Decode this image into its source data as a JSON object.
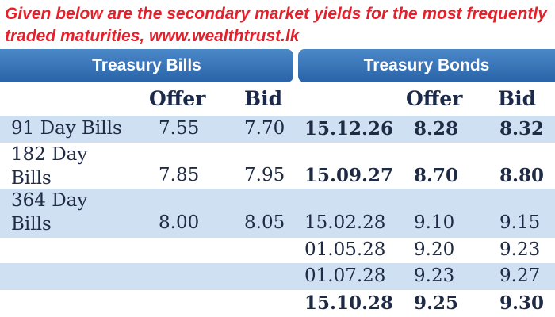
{
  "intro_line1": "Given below are the secondary market yields for the most frequently",
  "intro_line2": "traded maturities, www.wealthtrust.lk",
  "bills_header": "Treasury Bills",
  "bonds_header": "Treasury Bonds",
  "col_offer": "Offer",
  "col_bid": "Bid",
  "bills": [
    {
      "name": "91 Day Bills",
      "offer": "7.55",
      "bid": "7.70"
    },
    {
      "name_line1": "182 Day",
      "name_line2": "Bills",
      "offer": "7.85",
      "bid": "7.95"
    },
    {
      "name_line1": "364 Day",
      "name_line2": "Bills",
      "offer": "8.00",
      "bid": "8.05"
    }
  ],
  "bonds": [
    {
      "maturity": "15.12.26",
      "offer": "8.28",
      "bid": "8.32"
    },
    {
      "maturity": "15.09.27",
      "offer": "8.70",
      "bid": "8.80"
    },
    {
      "maturity": "15.02.28",
      "offer": "9.10",
      "bid": "9.15"
    },
    {
      "maturity": "01.05.28",
      "offer": "9.20",
      "bid": "9.23"
    },
    {
      "maturity": "01.07.28",
      "offer": "9.23",
      "bid": "9.27"
    },
    {
      "maturity": "15.10.28",
      "offer": "9.25",
      "bid": "9.30"
    }
  ],
  "colors": {
    "header_blue": "#2a63a8",
    "band_blue": "#cfe0f2",
    "intro_red": "#e4202a"
  }
}
